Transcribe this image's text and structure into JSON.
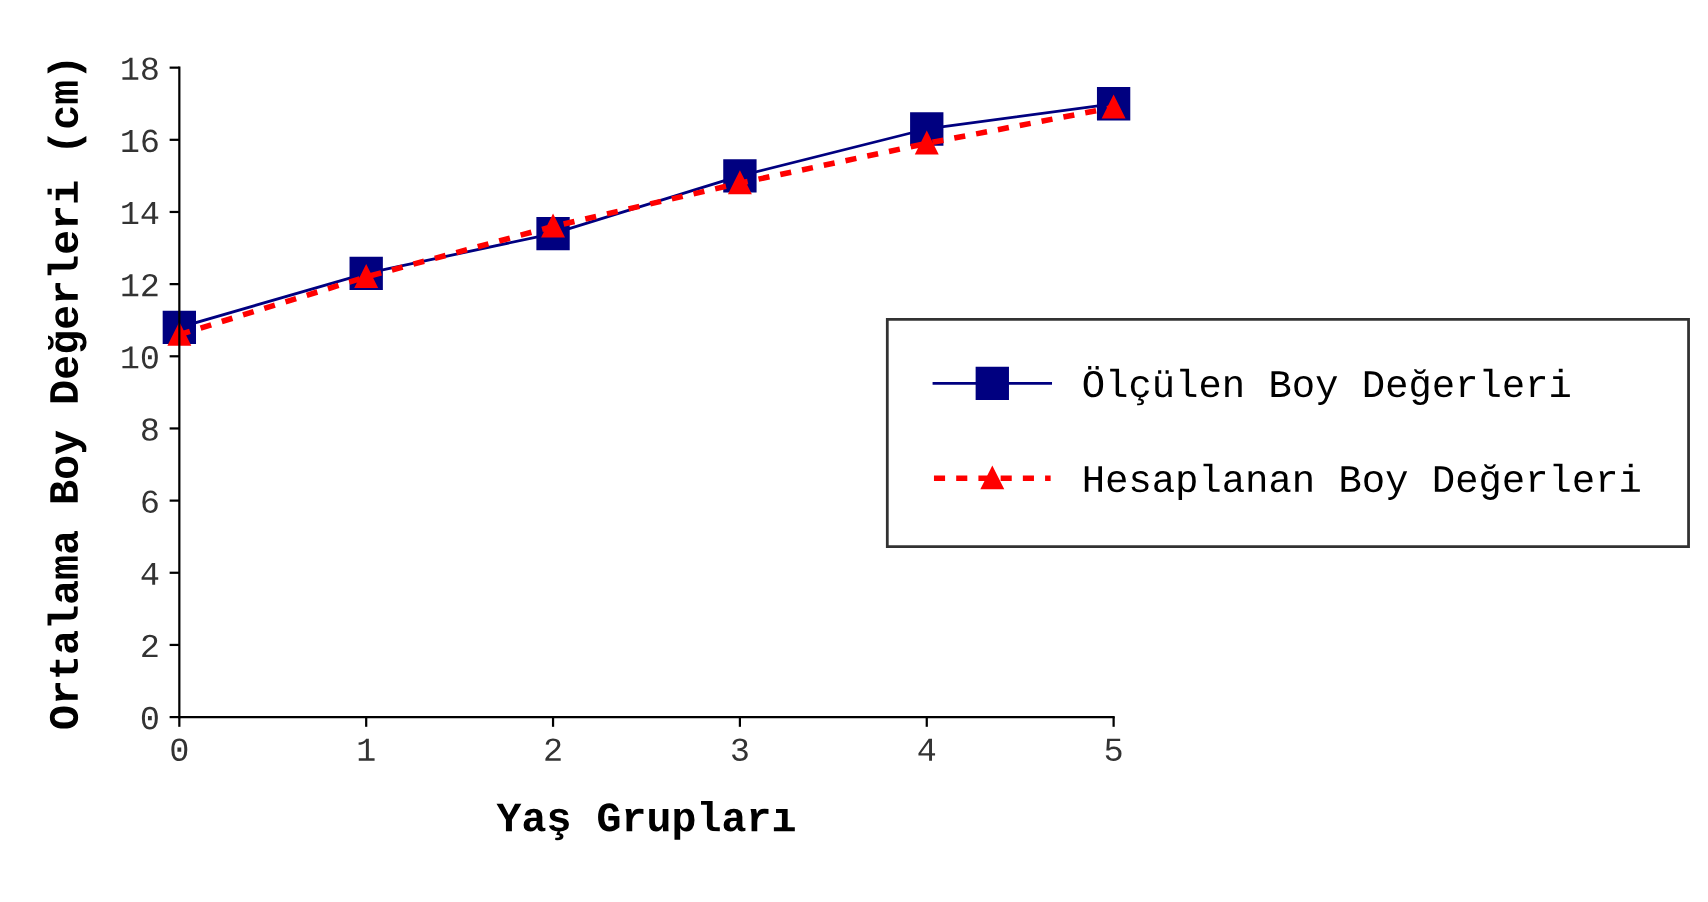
{
  "chart_data": {
    "type": "line",
    "xlabel": "Yaş Grupları",
    "ylabel": "Ortalama Boy Değerleri (cm)",
    "x": [
      0,
      1,
      2,
      3,
      4,
      5
    ],
    "xlim": [
      0,
      5
    ],
    "xticks": [
      0,
      1,
      2,
      3,
      4,
      5
    ],
    "ylim": [
      0,
      18
    ],
    "yticks": [
      0,
      2,
      4,
      6,
      8,
      10,
      12,
      14,
      16,
      18
    ],
    "grid": false,
    "legend": "right",
    "series": [
      {
        "name": "Ölçülen Boy Değerleri",
        "color": "#000080",
        "marker": "square",
        "line_style": "solid",
        "values": [
          10.8,
          12.3,
          13.4,
          15.0,
          16.3,
          17.0
        ]
      },
      {
        "name": "Hesaplanan Boy Değerleri",
        "color": "#ff0000",
        "marker": "triangle",
        "line_style": "dotted",
        "values": [
          10.6,
          12.2,
          13.6,
          14.8,
          15.9,
          16.9
        ]
      }
    ]
  }
}
